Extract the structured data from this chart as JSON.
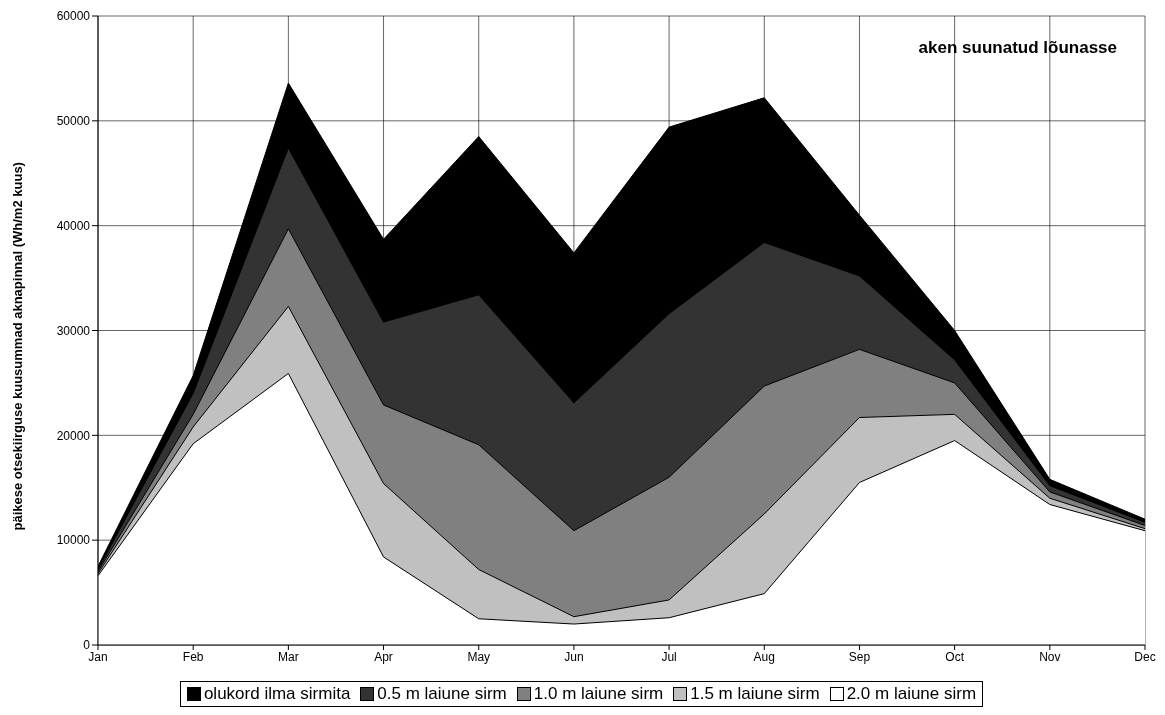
{
  "chart_data": {
    "type": "area",
    "ylabel": "päikese otsekiirguse kuusummad aknapinnal (Wh/m2 kuus)",
    "annotations": [
      "aken suunatud lõunasse"
    ],
    "categories": [
      "Jan",
      "Feb",
      "Mar",
      "Apr",
      "May",
      "Jun",
      "Jul",
      "Aug",
      "Sep",
      "Oct",
      "Nov",
      "Dec"
    ],
    "ylim": [
      0,
      60000
    ],
    "yticks": [
      0,
      10000,
      20000,
      30000,
      40000,
      50000,
      60000
    ],
    "grid": true,
    "legend": "bottom",
    "series": [
      {
        "name": "olukord ilma sirmita",
        "color": "#000000",
        "values": [
          7500,
          25700,
          53600,
          38700,
          48500,
          37400,
          49400,
          52200,
          41000,
          30000,
          15800,
          12000
        ]
      },
      {
        "name": "0.5 m laiune sirm",
        "color": "#333333",
        "values": [
          7200,
          24000,
          47400,
          30800,
          33400,
          23100,
          31600,
          38400,
          35200,
          27200,
          15200,
          11700
        ]
      },
      {
        "name": "1.0 m laiune sirm",
        "color": "#808080",
        "values": [
          7000,
          22000,
          39700,
          22900,
          19100,
          10900,
          16000,
          24700,
          28200,
          25000,
          14600,
          11400
        ]
      },
      {
        "name": "1.5 m laiune sirm",
        "color": "#c0c0c0",
        "values": [
          6800,
          20800,
          32300,
          15400,
          7200,
          2700,
          4300,
          12500,
          21700,
          22000,
          14000,
          11100
        ]
      },
      {
        "name": "2.0 m laiune sirm",
        "color": "#ffffff",
        "values": [
          6600,
          19200,
          25900,
          8400,
          2500,
          2000,
          2600,
          4900,
          15500,
          19500,
          13400,
          10900
        ]
      }
    ]
  }
}
